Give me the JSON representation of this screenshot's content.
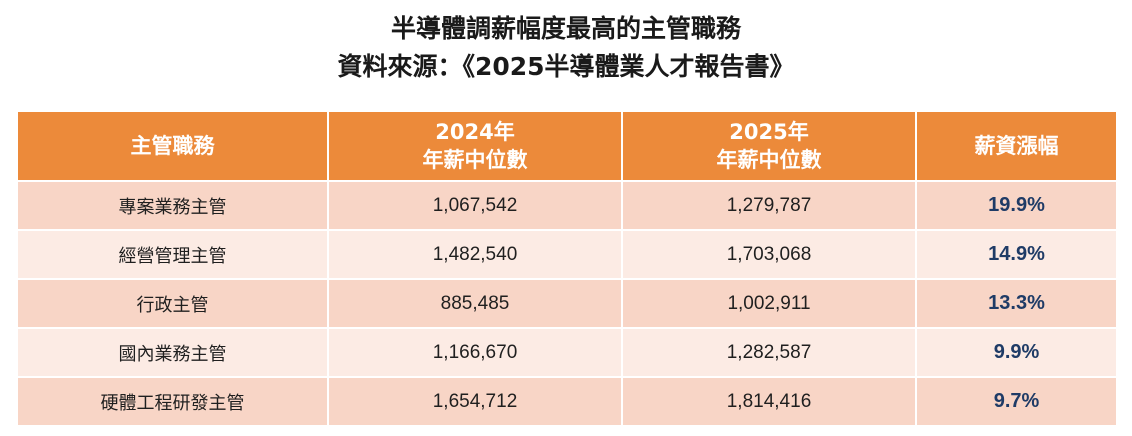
{
  "title": {
    "line1": "半導體調薪幅度最高的主管職務",
    "line2": "資料來源：《2025半導體業人才報告書》"
  },
  "chart_data": {
    "type": "table",
    "columns": [
      {
        "line1": "主管職務",
        "line2": ""
      },
      {
        "line1": "2024年",
        "line2": "年薪中位數"
      },
      {
        "line1": "2025年",
        "line2": "年薪中位數"
      },
      {
        "line1": "薪資漲幅",
        "line2": ""
      }
    ],
    "rows": [
      {
        "role": "專案業務主管",
        "salary_2024": "1,067,542",
        "salary_2025": "1,279,787",
        "growth": "19.9%"
      },
      {
        "role": "經營管理主管",
        "salary_2024": "1,482,540",
        "salary_2025": "1,703,068",
        "growth": "14.9%"
      },
      {
        "role": "行政主管",
        "salary_2024": "885,485",
        "salary_2025": "1,002,911",
        "growth": "13.3%"
      },
      {
        "role": "國內業務主管",
        "salary_2024": "1,166,670",
        "salary_2025": "1,282,587",
        "growth": "9.9%"
      },
      {
        "role": "硬體工程研發主管",
        "salary_2024": "1,654,712",
        "salary_2025": "1,814,416",
        "growth": "9.7%"
      }
    ]
  },
  "colors": {
    "header_background": "#ec8a3a",
    "header_text": "#ffffff",
    "row_dark": "#f8d5c6",
    "row_light": "#fcebe4",
    "growth_text": "#1f3b66"
  }
}
